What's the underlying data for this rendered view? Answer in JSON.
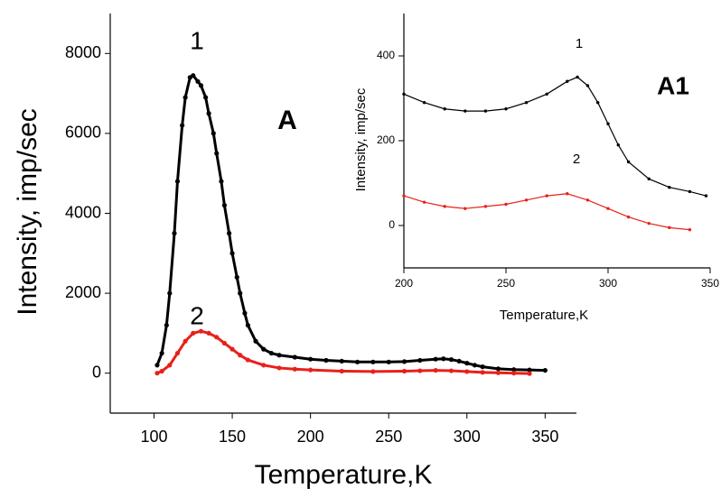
{
  "chart_data": [
    {
      "type": "scatter",
      "annotation": "A",
      "x_label": "Temperature,K",
      "y_label": "Intensity, imp/sec",
      "xlim": [
        72,
        370
      ],
      "xticks": [
        100,
        150,
        200,
        250,
        300,
        350
      ],
      "ylim": [
        -1000,
        9000
      ],
      "yticks": [
        0,
        2000,
        4000,
        6000,
        8000
      ],
      "series": [
        {
          "name": "1",
          "color": "#000000",
          "x": [
            102,
            105,
            108,
            110,
            113,
            115,
            118,
            120,
            123,
            125,
            128,
            130,
            133,
            135,
            138,
            140,
            143,
            145,
            148,
            150,
            153,
            155,
            158,
            160,
            165,
            170,
            175,
            180,
            190,
            200,
            210,
            220,
            230,
            240,
            250,
            260,
            270,
            280,
            285,
            290,
            295,
            300,
            305,
            310,
            320,
            330,
            340,
            350
          ],
          "values": [
            200,
            500,
            1200,
            2000,
            3500,
            4800,
            6200,
            6900,
            7400,
            7450,
            7300,
            7200,
            6900,
            6500,
            6000,
            5500,
            4800,
            4200,
            3500,
            3000,
            2400,
            2000,
            1500,
            1200,
            800,
            600,
            500,
            450,
            400,
            350,
            320,
            300,
            280,
            280,
            280,
            290,
            320,
            350,
            360,
            340,
            300,
            250,
            200,
            160,
            110,
            90,
            80,
            70
          ]
        },
        {
          "name": "2",
          "color": "#e8201a",
          "x": [
            102,
            105,
            110,
            115,
            120,
            125,
            130,
            135,
            140,
            145,
            150,
            155,
            160,
            170,
            180,
            190,
            200,
            220,
            240,
            260,
            270,
            280,
            290,
            300,
            310,
            320,
            330,
            340
          ],
          "values": [
            0,
            50,
            200,
            500,
            800,
            1000,
            1050,
            1000,
            900,
            750,
            600,
            450,
            330,
            200,
            130,
            100,
            80,
            50,
            40,
            50,
            60,
            70,
            60,
            40,
            20,
            10,
            0,
            -10
          ]
        }
      ]
    },
    {
      "type": "scatter",
      "annotation": "A1",
      "x_label": "Temperature,K",
      "y_label": "Intensity, imp/sec",
      "xlim": [
        200,
        350
      ],
      "xticks": [
        200,
        250,
        300,
        350
      ],
      "ylim": [
        -100,
        500
      ],
      "yticks": [
        0,
        200,
        400
      ],
      "series": [
        {
          "name": "1",
          "color": "#000000",
          "x": [
            200,
            210,
            220,
            230,
            240,
            250,
            260,
            270,
            280,
            285,
            290,
            295,
            300,
            305,
            310,
            320,
            330,
            340,
            348
          ],
          "values": [
            310,
            290,
            275,
            270,
            270,
            275,
            290,
            310,
            340,
            350,
            330,
            290,
            240,
            190,
            150,
            110,
            90,
            80,
            70
          ]
        },
        {
          "name": "2",
          "color": "#e8201a",
          "x": [
            200,
            210,
            220,
            230,
            240,
            250,
            260,
            270,
            280,
            290,
            300,
            310,
            320,
            330,
            340
          ],
          "values": [
            70,
            55,
            45,
            40,
            45,
            50,
            60,
            70,
            75,
            60,
            40,
            20,
            5,
            -5,
            -10
          ]
        }
      ]
    }
  ]
}
